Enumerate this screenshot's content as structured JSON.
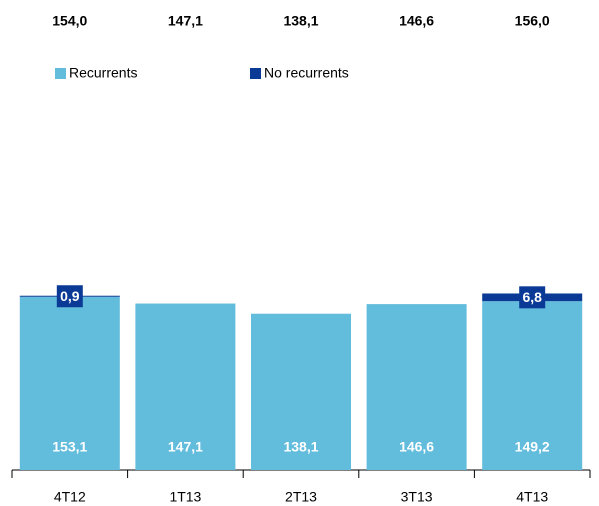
{
  "chart_data": {
    "type": "stacked_bar",
    "categories": [
      "4T12",
      "1T13",
      "2T13",
      "3T13",
      "4T13"
    ],
    "total_labels": [
      "154,0",
      "147,1",
      "138,1",
      "146,6",
      "156,0"
    ],
    "series": [
      {
        "name": "Recurrents",
        "color": "#62bcdc",
        "values": [
          153.1,
          147.1,
          138.1,
          146.6,
          149.2
        ],
        "value_labels": [
          "153,1",
          "147,1",
          "138,1",
          "146,6",
          "149,2"
        ]
      },
      {
        "name": "No recurrents",
        "color": "#0a3a96",
        "values": [
          0.9,
          null,
          null,
          null,
          6.8
        ],
        "value_labels": [
          "0,9",
          null,
          null,
          null,
          "6,8"
        ]
      }
    ],
    "ylim": [
      0,
      380
    ]
  }
}
